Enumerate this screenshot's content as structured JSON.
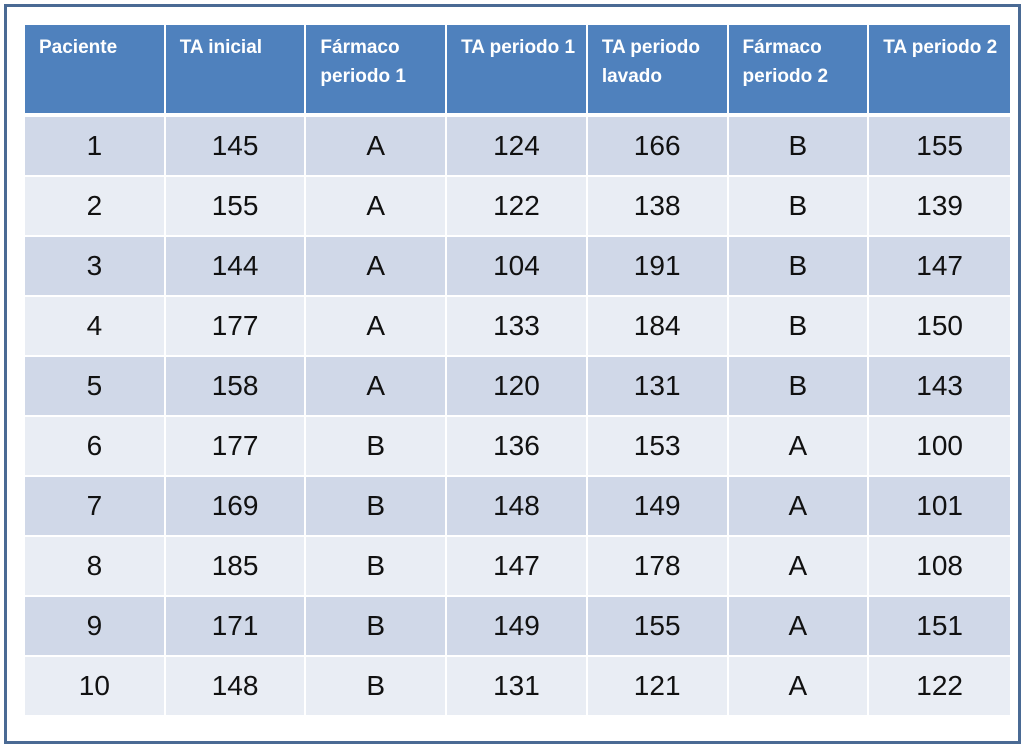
{
  "colors": {
    "header_bg": "#4f81bd",
    "header_text": "#ffffff",
    "row_band_dark": "#d0d8e8",
    "row_band_light": "#e9edf4",
    "frame_border": "#4a6a94"
  },
  "table": {
    "headers": [
      "Paciente",
      "TA inicial",
      "Fármaco periodo 1",
      "TA periodo 1",
      "TA periodo lavado",
      "Fármaco periodo 2",
      "TA periodo 2"
    ],
    "rows": [
      [
        "1",
        "145",
        "A",
        "124",
        "166",
        "B",
        "155"
      ],
      [
        "2",
        "155",
        "A",
        "122",
        "138",
        "B",
        "139"
      ],
      [
        "3",
        "144",
        "A",
        "104",
        "191",
        "B",
        "147"
      ],
      [
        "4",
        "177",
        "A",
        "133",
        "184",
        "B",
        "150"
      ],
      [
        "5",
        "158",
        "A",
        "120",
        "131",
        "B",
        "143"
      ],
      [
        "6",
        "177",
        "B",
        "136",
        "153",
        "A",
        "100"
      ],
      [
        "7",
        "169",
        "B",
        "148",
        "149",
        "A",
        "101"
      ],
      [
        "8",
        "185",
        "B",
        "147",
        "178",
        "A",
        "108"
      ],
      [
        "9",
        "171",
        "B",
        "149",
        "155",
        "A",
        "151"
      ],
      [
        "10",
        "148",
        "B",
        "131",
        "121",
        "A",
        "122"
      ]
    ]
  }
}
